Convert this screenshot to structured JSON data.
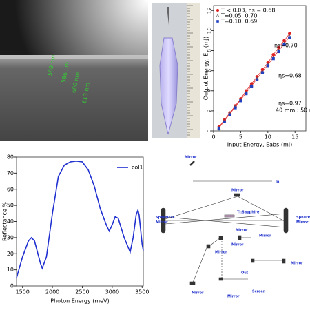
{
  "sem_image": {
    "labels": [
      "569 nm",
      "586 nm",
      "600 nm",
      "613 nm"
    ]
  },
  "chart_data": [
    {
      "type": "scatter",
      "x_label": "Input Energy, Eabs (mJ)",
      "y_label": "Output Energy, Ep (mJ)",
      "x": [
        1,
        2,
        3,
        4,
        5,
        6,
        7,
        8,
        9,
        10,
        11,
        12,
        13,
        14
      ],
      "series": [
        {
          "name": "T < 0.03, ηs = 0.68",
          "color": "#e02020",
          "marker": "circle",
          "filled": true,
          "line": true,
          "values": [
            0.4,
            1.1,
            1.8,
            2.5,
            3.2,
            4.0,
            4.7,
            5.4,
            6.1,
            6.8,
            7.6,
            8.3,
            9.0,
            9.7
          ]
        },
        {
          "name": "T=0.05,    0.70",
          "color": "#555555",
          "marker": "triangle",
          "filled": false,
          "line": true,
          "values": [
            0.3,
            1.0,
            1.7,
            2.4,
            3.1,
            3.8,
            4.5,
            5.2,
            5.9,
            6.6,
            7.3,
            8.0,
            8.7,
            9.4
          ]
        },
        {
          "name": "T=0.10,    0.69",
          "color": "#2040c0",
          "marker": "square",
          "filled": true,
          "line": false,
          "values": [
            0.2,
            0.9,
            1.6,
            2.3,
            3.0,
            3.7,
            4.4,
            5.1,
            5.8,
            6.5,
            7.2,
            7.9,
            8.6,
            9.3
          ]
        }
      ],
      "fit_color": "#e03030",
      "annotations": [
        "ηs=0.70",
        "ηs=0.68",
        "ηs=0.97",
        "40 mm : 50 mm"
      ],
      "xlim": [
        0,
        17
      ],
      "xticks": [
        0,
        5,
        10,
        15
      ],
      "ylim": [
        0,
        12.5
      ],
      "yticks": [
        0,
        2,
        4,
        6,
        8,
        10,
        12
      ],
      "grid": false,
      "legend": "upper left"
    },
    {
      "type": "line",
      "x_label": "Photon Energy (meV)",
      "y_label": "Reflectance %",
      "x": [
        1400,
        1500,
        1600,
        1650,
        1700,
        1800,
        1830,
        1900,
        2000,
        2100,
        2200,
        2300,
        2400,
        2500,
        2600,
        2700,
        2800,
        2900,
        2950,
        3000,
        3050,
        3100,
        3200,
        3300,
        3350,
        3400,
        3430,
        3450,
        3500,
        3520
      ],
      "series": [
        {
          "name": "col1",
          "color": "#1f2fd0",
          "values": [
            5,
            18,
            28,
            30,
            28,
            14,
            11,
            18,
            45,
            68,
            75,
            77,
            77.5,
            77,
            72,
            62,
            48,
            38,
            34,
            38,
            43,
            42,
            30,
            21,
            30,
            44,
            47,
            44,
            26,
            22
          ]
        }
      ],
      "xlim": [
        1400,
        3520
      ],
      "xticks": [
        1500,
        2000,
        2500,
        3000,
        3500
      ],
      "ylim": [
        0,
        80
      ],
      "yticks": [
        0,
        10,
        20,
        30,
        40,
        50,
        60,
        70,
        80
      ],
      "grid": false,
      "legend": "upper right"
    }
  ],
  "diagram": {
    "labels": [
      "Mirror",
      "In",
      "Mirror",
      "Spherical Mirror",
      "Spherical Mirror",
      "Ti:Sapphire",
      "Mirror",
      "Mirror",
      "Mirror",
      "Mirror",
      "Mirror",
      "Out",
      "Screen",
      "Mirror",
      "Mirror"
    ]
  }
}
